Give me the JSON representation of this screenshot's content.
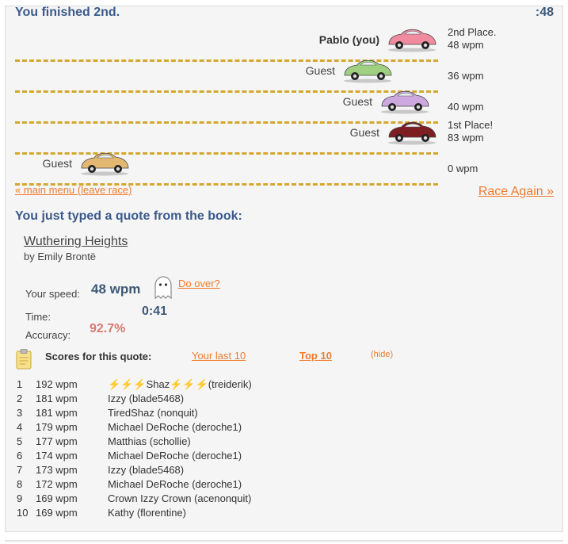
{
  "race": {
    "status": "You finished 2nd.",
    "timer": ":48",
    "lanes": [
      {
        "name": "Pablo (you)",
        "is_you": true,
        "info": [
          "2nd Place.",
          "48 wpm"
        ],
        "car_color": "#f08ba0",
        "progress": 1.0
      },
      {
        "name": "Guest",
        "is_you": false,
        "info": [
          "36 wpm"
        ],
        "car_color": "#9fd07f",
        "progress": 0.88
      },
      {
        "name": "Guest",
        "is_you": false,
        "info": [
          "40 wpm"
        ],
        "car_color": "#cda8df",
        "progress": 0.98
      },
      {
        "name": "Guest",
        "is_you": false,
        "info": [
          "1st Place!",
          "83 wpm"
        ],
        "car_color": "#7d1f22",
        "progress": 1.0
      },
      {
        "name": "Guest",
        "is_you": false,
        "info": [
          "0 wpm"
        ],
        "car_color": "#e3b870",
        "progress": 0.17
      }
    ]
  },
  "links": {
    "main_menu": "« main menu (leave race)",
    "race_again": "Race Again »"
  },
  "quote": {
    "heading": "You just typed a quote from the book:",
    "title": "Wuthering Heights",
    "author": "by Emily Brontë"
  },
  "stats": {
    "speed_label": "Your speed:",
    "speed_value": "48 wpm",
    "time_label": "Time:",
    "time_value": "0:41",
    "accuracy_label": "Accuracy:",
    "accuracy_value": "92.7%",
    "do_over": "Do over?"
  },
  "scores": {
    "label": "Scores for this quote:",
    "tab_last10": "Your last 10",
    "tab_top10": "Top 10",
    "hide": "(hide)",
    "rows": [
      {
        "rank": "1",
        "wpm": "192 wpm",
        "name": "Shaz",
        "user": "(treiderik)",
        "bolts": true
      },
      {
        "rank": "2",
        "wpm": "181 wpm",
        "name": "Izzy (blade5468)"
      },
      {
        "rank": "3",
        "wpm": "181 wpm",
        "name": "TiredShaz (nonquit)"
      },
      {
        "rank": "4",
        "wpm": "179 wpm",
        "name": "Michael DeRoche (deroche1)"
      },
      {
        "rank": "5",
        "wpm": "177 wpm",
        "name": "Matthias (schollie)"
      },
      {
        "rank": "6",
        "wpm": "174 wpm",
        "name": "Michael DeRoche (deroche1)"
      },
      {
        "rank": "7",
        "wpm": "173 wpm",
        "name": "Izzy (blade5468)"
      },
      {
        "rank": "8",
        "wpm": "172 wpm",
        "name": "Michael DeRoche (deroche1)"
      },
      {
        "rank": "9",
        "wpm": "169 wpm",
        "name": "Crown Izzy Crown (acenonquit)"
      },
      {
        "rank": "10",
        "wpm": "169 wpm",
        "name": "Kathy (florentine)"
      }
    ]
  }
}
